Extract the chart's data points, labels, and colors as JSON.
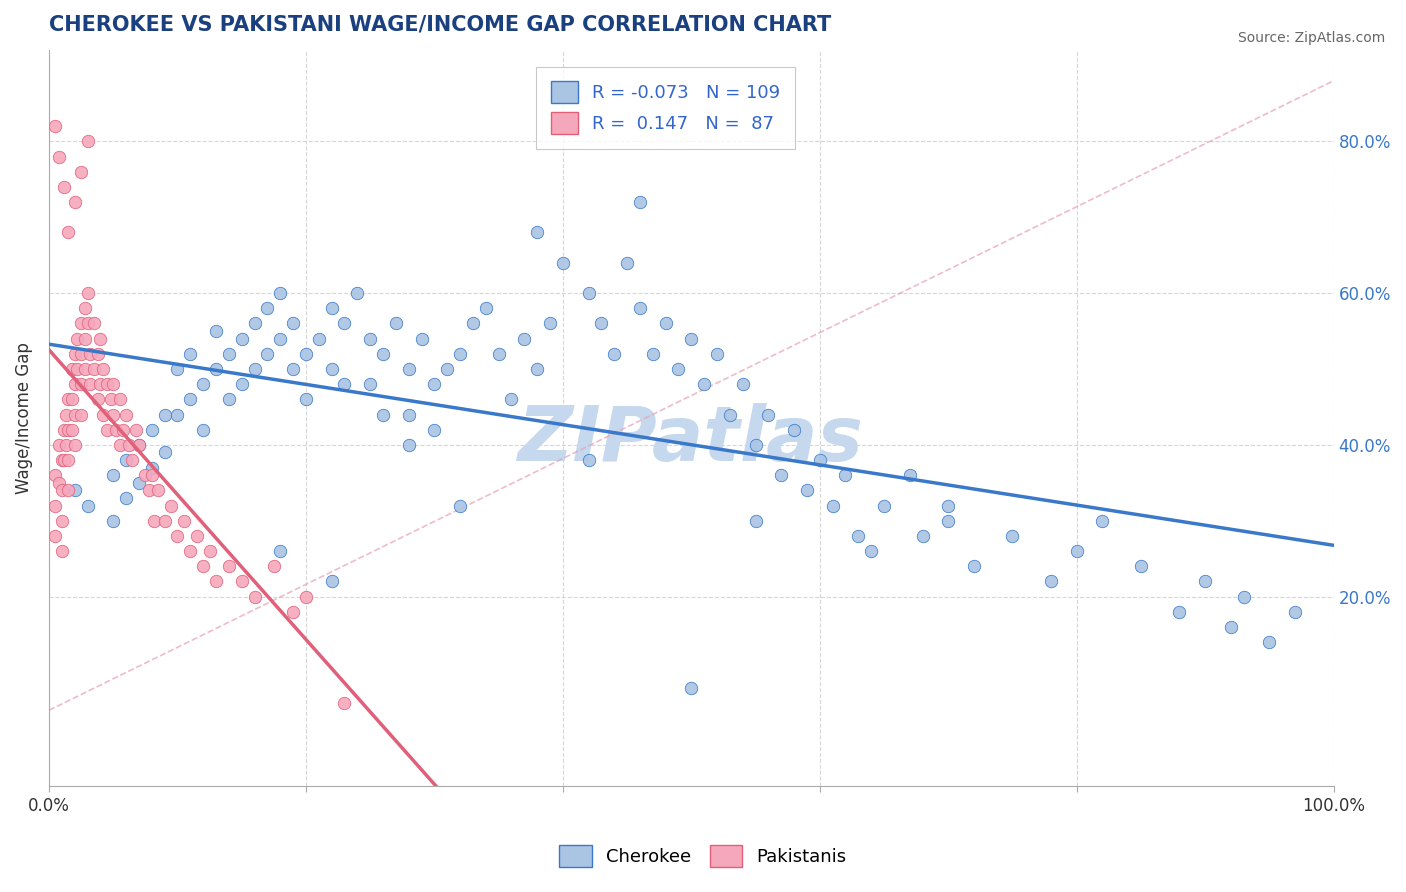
{
  "title": "CHEROKEE VS PAKISTANI WAGE/INCOME GAP CORRELATION CHART",
  "source_text": "Source: ZipAtlas.com",
  "ylabel": "Wage/Income Gap",
  "y_ticks": [
    0.2,
    0.4,
    0.6,
    0.8
  ],
  "y_tick_labels": [
    "20.0%",
    "40.0%",
    "60.0%",
    "80.0%"
  ],
  "xlim": [
    0.0,
    1.0
  ],
  "ylim": [
    -0.05,
    0.92
  ],
  "cherokee_R": -0.073,
  "cherokee_N": 109,
  "pakistani_R": 0.147,
  "pakistani_N": 87,
  "cherokee_color": "#aac4e4",
  "pakistani_color": "#f5a8bc",
  "cherokee_line_color": "#3a78c9",
  "pakistani_line_color": "#e0607a",
  "title_color": "#1a4080",
  "source_color": "#666666",
  "legend_text_color": "#3366cc",
  "background_color": "#ffffff",
  "watermark": "ZIPatlas",
  "watermark_color": "#c5d8ee",
  "grid_color": "#cccccc",
  "cherokee_x": [
    0.02,
    0.03,
    0.05,
    0.05,
    0.06,
    0.06,
    0.07,
    0.07,
    0.08,
    0.08,
    0.09,
    0.09,
    0.1,
    0.1,
    0.11,
    0.11,
    0.12,
    0.12,
    0.13,
    0.13,
    0.14,
    0.14,
    0.15,
    0.15,
    0.16,
    0.16,
    0.17,
    0.17,
    0.18,
    0.18,
    0.19,
    0.19,
    0.2,
    0.2,
    0.21,
    0.22,
    0.22,
    0.23,
    0.23,
    0.24,
    0.25,
    0.25,
    0.26,
    0.26,
    0.27,
    0.28,
    0.28,
    0.29,
    0.3,
    0.3,
    0.31,
    0.32,
    0.33,
    0.34,
    0.35,
    0.36,
    0.37,
    0.38,
    0.39,
    0.4,
    0.42,
    0.43,
    0.44,
    0.45,
    0.46,
    0.47,
    0.48,
    0.49,
    0.5,
    0.51,
    0.52,
    0.53,
    0.54,
    0.55,
    0.56,
    0.57,
    0.58,
    0.59,
    0.6,
    0.61,
    0.62,
    0.63,
    0.65,
    0.67,
    0.68,
    0.7,
    0.72,
    0.75,
    0.78,
    0.8,
    0.82,
    0.85,
    0.88,
    0.9,
    0.92,
    0.93,
    0.95,
    0.97,
    0.5,
    0.38,
    0.28,
    0.42,
    0.55,
    0.64,
    0.7,
    0.46,
    0.32,
    0.22,
    0.18
  ],
  "cherokee_y": [
    0.34,
    0.32,
    0.36,
    0.3,
    0.38,
    0.33,
    0.4,
    0.35,
    0.42,
    0.37,
    0.44,
    0.39,
    0.5,
    0.44,
    0.52,
    0.46,
    0.48,
    0.42,
    0.55,
    0.5,
    0.52,
    0.46,
    0.54,
    0.48,
    0.56,
    0.5,
    0.58,
    0.52,
    0.6,
    0.54,
    0.56,
    0.5,
    0.52,
    0.46,
    0.54,
    0.58,
    0.5,
    0.56,
    0.48,
    0.6,
    0.54,
    0.48,
    0.52,
    0.44,
    0.56,
    0.5,
    0.44,
    0.54,
    0.48,
    0.42,
    0.5,
    0.52,
    0.56,
    0.58,
    0.52,
    0.46,
    0.54,
    0.5,
    0.56,
    0.64,
    0.6,
    0.56,
    0.52,
    0.64,
    0.58,
    0.52,
    0.56,
    0.5,
    0.54,
    0.48,
    0.52,
    0.44,
    0.48,
    0.4,
    0.44,
    0.36,
    0.42,
    0.34,
    0.38,
    0.32,
    0.36,
    0.28,
    0.32,
    0.36,
    0.28,
    0.32,
    0.24,
    0.28,
    0.22,
    0.26,
    0.3,
    0.24,
    0.18,
    0.22,
    0.16,
    0.2,
    0.14,
    0.18,
    0.08,
    0.68,
    0.4,
    0.38,
    0.3,
    0.26,
    0.3,
    0.72,
    0.32,
    0.22,
    0.26
  ],
  "pakistani_x": [
    0.005,
    0.005,
    0.005,
    0.008,
    0.008,
    0.01,
    0.01,
    0.01,
    0.01,
    0.012,
    0.012,
    0.013,
    0.013,
    0.015,
    0.015,
    0.015,
    0.015,
    0.018,
    0.018,
    0.018,
    0.02,
    0.02,
    0.02,
    0.02,
    0.022,
    0.022,
    0.025,
    0.025,
    0.025,
    0.025,
    0.028,
    0.028,
    0.028,
    0.03,
    0.03,
    0.032,
    0.032,
    0.035,
    0.035,
    0.038,
    0.038,
    0.04,
    0.04,
    0.042,
    0.042,
    0.045,
    0.045,
    0.048,
    0.05,
    0.05,
    0.052,
    0.055,
    0.055,
    0.058,
    0.06,
    0.062,
    0.065,
    0.068,
    0.07,
    0.075,
    0.078,
    0.08,
    0.082,
    0.085,
    0.09,
    0.095,
    0.1,
    0.105,
    0.11,
    0.115,
    0.12,
    0.125,
    0.13,
    0.14,
    0.15,
    0.16,
    0.175,
    0.19,
    0.2,
    0.015,
    0.02,
    0.025,
    0.03,
    0.005,
    0.008,
    0.012,
    0.23
  ],
  "pakistani_y": [
    0.36,
    0.32,
    0.28,
    0.4,
    0.35,
    0.38,
    0.34,
    0.3,
    0.26,
    0.42,
    0.38,
    0.44,
    0.4,
    0.46,
    0.42,
    0.38,
    0.34,
    0.5,
    0.46,
    0.42,
    0.52,
    0.48,
    0.44,
    0.4,
    0.54,
    0.5,
    0.56,
    0.52,
    0.48,
    0.44,
    0.58,
    0.54,
    0.5,
    0.6,
    0.56,
    0.52,
    0.48,
    0.56,
    0.5,
    0.52,
    0.46,
    0.54,
    0.48,
    0.5,
    0.44,
    0.48,
    0.42,
    0.46,
    0.48,
    0.44,
    0.42,
    0.46,
    0.4,
    0.42,
    0.44,
    0.4,
    0.38,
    0.42,
    0.4,
    0.36,
    0.34,
    0.36,
    0.3,
    0.34,
    0.3,
    0.32,
    0.28,
    0.3,
    0.26,
    0.28,
    0.24,
    0.26,
    0.22,
    0.24,
    0.22,
    0.2,
    0.24,
    0.18,
    0.2,
    0.68,
    0.72,
    0.76,
    0.8,
    0.82,
    0.78,
    0.74,
    0.06
  ],
  "ref_line_x": [
    0.0,
    1.0
  ],
  "ref_line_y": [
    0.05,
    0.88
  ]
}
